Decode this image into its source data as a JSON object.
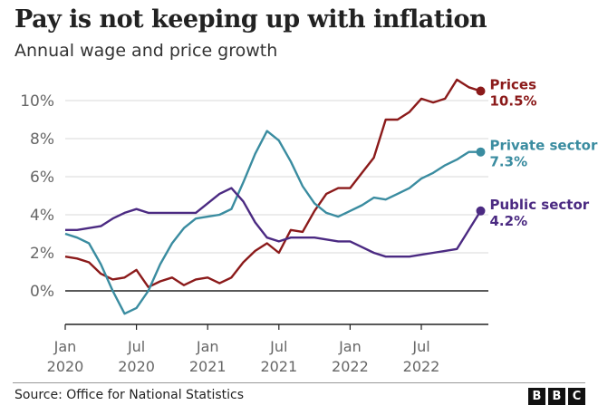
{
  "header": {
    "title": "Pay is not keeping up with inflation",
    "subtitle": "Annual wage and price growth"
  },
  "footer": {
    "source": "Source: Office for National Statistics",
    "logo_letters": [
      "B",
      "B",
      "C"
    ]
  },
  "chart_data": {
    "type": "line",
    "title": "Pay is not keeping up with inflation",
    "subtitle": "Annual wage and price growth",
    "xlabel": "",
    "ylabel": "",
    "ylim": [
      -2,
      11
    ],
    "yticks": [
      0,
      2,
      4,
      6,
      8,
      10
    ],
    "ytick_labels": [
      "0%",
      "2%",
      "4%",
      "6%",
      "8%",
      "10%"
    ],
    "grid": true,
    "x_start": "Jan 2020",
    "x_count": 36,
    "xticks": [
      {
        "index": 0,
        "line1": "Jan",
        "line2": "2020"
      },
      {
        "index": 6,
        "line1": "Jul",
        "line2": "2020"
      },
      {
        "index": 12,
        "line1": "Jan",
        "line2": "2021"
      },
      {
        "index": 18,
        "line1": "Jul",
        "line2": "2021"
      },
      {
        "index": 24,
        "line1": "Jan",
        "line2": "2022"
      },
      {
        "index": 30,
        "line1": "Jul",
        "line2": "2022"
      }
    ],
    "series": [
      {
        "name": "Prices",
        "end_label": "10.5%",
        "color": "#8b1a1a",
        "start_index": 0,
        "values": [
          1.8,
          1.7,
          1.5,
          0.9,
          0.6,
          0.7,
          1.1,
          0.2,
          0.5,
          0.7,
          0.3,
          0.6,
          0.7,
          0.4,
          0.7,
          1.5,
          2.1,
          2.5,
          2.0,
          3.2,
          3.1,
          4.2,
          5.1,
          5.4,
          5.4,
          6.2,
          7.0,
          9.0,
          9.0,
          9.4,
          10.1,
          9.9,
          10.1,
          11.1,
          10.7,
          10.5
        ]
      },
      {
        "name": "Private sector",
        "end_label": "7.3%",
        "color": "#3a8ca0",
        "start_index": 0,
        "values": [
          3.0,
          2.8,
          2.5,
          1.4,
          0.0,
          -1.2,
          -0.9,
          0.0,
          1.4,
          2.5,
          3.3,
          3.8,
          3.9,
          4.0,
          4.3,
          5.7,
          7.2,
          8.4,
          7.9,
          6.8,
          5.5,
          4.6,
          4.1,
          3.9,
          4.2,
          4.5,
          4.9,
          4.8,
          5.1,
          5.4,
          5.9,
          6.2,
          6.6,
          6.9,
          7.3,
          7.3
        ]
      },
      {
        "name": "Public sector",
        "end_label": "4.2%",
        "color": "#4b2a82",
        "start_index": 0,
        "values": [
          3.2,
          3.2,
          3.3,
          3.4,
          3.8,
          4.1,
          4.3,
          4.1,
          4.1,
          4.1,
          4.1,
          4.1,
          4.6,
          5.1,
          5.4,
          4.7,
          3.6,
          2.8,
          2.6,
          2.8,
          2.8,
          2.8,
          2.7,
          2.6,
          2.6,
          2.3,
          2.0,
          1.8,
          1.8,
          1.8,
          1.9,
          2.0,
          2.1,
          2.2,
          3.2,
          4.2
        ]
      }
    ],
    "legend": "inline-right-end-labels"
  }
}
